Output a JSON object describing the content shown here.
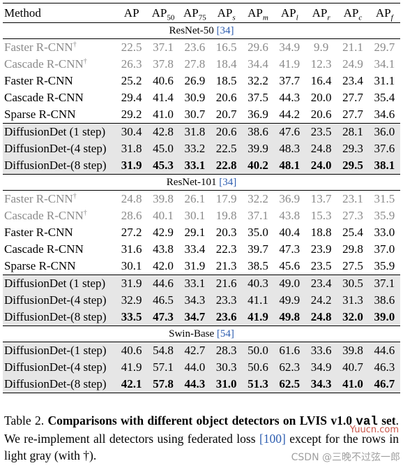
{
  "table": {
    "columns": {
      "method": "Method",
      "metrics": [
        {
          "base": "AP",
          "sub": "",
          "italic": false
        },
        {
          "base": "AP",
          "sub": "50",
          "italic": false
        },
        {
          "base": "AP",
          "sub": "75",
          "italic": false
        },
        {
          "base": "AP",
          "sub": "s",
          "italic": true
        },
        {
          "base": "AP",
          "sub": "m",
          "italic": true
        },
        {
          "base": "AP",
          "sub": "l",
          "italic": true
        },
        {
          "base": "AP",
          "sub": "r",
          "italic": true
        },
        {
          "base": "AP",
          "sub": "c",
          "italic": true
        },
        {
          "base": "AP",
          "sub": "f",
          "italic": true
        }
      ]
    },
    "sections": [
      {
        "title": "ResNet-50",
        "cite": "[34]",
        "rows": [
          {
            "method": "Faster R-CNN",
            "dagger": "†",
            "style": "gray",
            "values": [
              "22.5",
              "37.1",
              "23.6",
              "16.5",
              "29.6",
              "34.9",
              "9.9",
              "21.1",
              "29.7"
            ]
          },
          {
            "method": "Cascade R-CNN",
            "dagger": "†",
            "style": "gray",
            "values": [
              "26.3",
              "37.8",
              "27.8",
              "18.4",
              "34.4",
              "41.9",
              "12.3",
              "24.9",
              "34.1"
            ]
          },
          {
            "method": "Faster R-CNN",
            "dagger": "",
            "style": "normal",
            "values": [
              "25.2",
              "40.6",
              "26.9",
              "18.5",
              "32.2",
              "37.7",
              "16.4",
              "23.4",
              "31.1"
            ]
          },
          {
            "method": "Cascade R-CNN",
            "dagger": "",
            "style": "normal",
            "values": [
              "29.4",
              "41.4",
              "30.9",
              "20.6",
              "37.5",
              "44.3",
              "20.0",
              "27.7",
              "35.4"
            ]
          },
          {
            "method": "Sparse R-CNN",
            "dagger": "",
            "style": "normal",
            "values": [
              "29.2",
              "41.0",
              "30.7",
              "20.7",
              "36.9",
              "44.2",
              "20.6",
              "27.7",
              "34.6"
            ]
          },
          {
            "method": "DiffusionDet (1 step)",
            "dagger": "",
            "style": "shade",
            "values": [
              "30.4",
              "42.8",
              "31.8",
              "20.6",
              "38.6",
              "47.6",
              "23.5",
              "28.1",
              "36.0"
            ]
          },
          {
            "method": "DiffusionDet-(4 step)",
            "dagger": "",
            "style": "shade",
            "values": [
              "31.8",
              "45.0",
              "33.2",
              "22.5",
              "39.9",
              "48.3",
              "24.8",
              "29.3",
              "37.6"
            ]
          },
          {
            "method": "DiffusionDet-(8 step)",
            "dagger": "",
            "style": "shade-bold",
            "values": [
              "31.9",
              "45.3",
              "33.1",
              "22.8",
              "40.2",
              "48.1",
              "24.0",
              "29.5",
              "38.1"
            ]
          }
        ]
      },
      {
        "title": "ResNet-101",
        "cite": "[34]",
        "rows": [
          {
            "method": "Faster R-CNN",
            "dagger": "†",
            "style": "gray",
            "values": [
              "24.8",
              "39.8",
              "26.1",
              "17.9",
              "32.2",
              "36.9",
              "13.7",
              "23.1",
              "31.5"
            ]
          },
          {
            "method": "Cascade R-CNN",
            "dagger": "†",
            "style": "gray",
            "values": [
              "28.6",
              "40.1",
              "30.1",
              "19.8",
              "37.1",
              "43.8",
              "15.3",
              "27.3",
              "35.9"
            ]
          },
          {
            "method": "Faster R-CNN",
            "dagger": "",
            "style": "normal",
            "values": [
              "27.2",
              "42.9",
              "29.1",
              "20.3",
              "35.0",
              "40.4",
              "18.8",
              "25.4",
              "33.0"
            ]
          },
          {
            "method": "Cascade R-CNN",
            "dagger": "",
            "style": "normal",
            "values": [
              "31.6",
              "43.8",
              "33.4",
              "22.3",
              "39.7",
              "47.3",
              "23.9",
              "29.8",
              "37.0"
            ]
          },
          {
            "method": "Sparse R-CNN",
            "dagger": "",
            "style": "normal",
            "values": [
              "30.1",
              "42.0",
              "31.9",
              "21.3",
              "38.5",
              "45.6",
              "23.5",
              "27.5",
              "35.9"
            ]
          },
          {
            "method": "DiffusionDet (1 step)",
            "dagger": "",
            "style": "shade",
            "values": [
              "31.9",
              "44.6",
              "33.1",
              "21.6",
              "40.3",
              "49.0",
              "23.4",
              "30.5",
              "37.1"
            ]
          },
          {
            "method": "DiffusionDet-(4 step)",
            "dagger": "",
            "style": "shade",
            "values": [
              "32.9",
              "46.5",
              "34.3",
              "23.3",
              "41.1",
              "49.9",
              "24.2",
              "31.3",
              "38.6"
            ]
          },
          {
            "method": "DiffusionDet-(8 step)",
            "dagger": "",
            "style": "shade-bold",
            "values": [
              "33.5",
              "47.3",
              "34.7",
              "23.6",
              "41.9",
              "49.8",
              "24.8",
              "32.0",
              "39.0"
            ]
          }
        ]
      },
      {
        "title": "Swin-Base",
        "cite": "[54]",
        "rows": [
          {
            "method": "DiffusionDet-(1 step)",
            "dagger": "",
            "style": "shade",
            "values": [
              "40.6",
              "54.8",
              "42.7",
              "28.3",
              "50.0",
              "61.6",
              "33.6",
              "39.8",
              "44.6"
            ]
          },
          {
            "method": "DiffusionDet-(4 step)",
            "dagger": "",
            "style": "shade",
            "values": [
              "41.9",
              "57.1",
              "44.0",
              "30.3",
              "50.6",
              "62.3",
              "34.9",
              "40.7",
              "46.3"
            ]
          },
          {
            "method": "DiffusionDet-(8 step)",
            "dagger": "",
            "style": "shade-bold",
            "values": [
              "42.1",
              "57.8",
              "44.3",
              "31.0",
              "51.3",
              "62.5",
              "34.3",
              "41.0",
              "46.7"
            ]
          }
        ]
      }
    ]
  },
  "caption": {
    "label": "Table 2.",
    "bold_a": "Comparisons with different object detectors on LVIS v1.0",
    "mono": "val",
    "bold_b": "set",
    "text_a": ". We re-implement all detectors using federated loss",
    "cite": "[100]",
    "text_b": "except for the rows in light gray (with †)."
  },
  "watermarks": {
    "site": "Yuucn.com",
    "author": "CSDN @三晚不过弦一郎"
  }
}
